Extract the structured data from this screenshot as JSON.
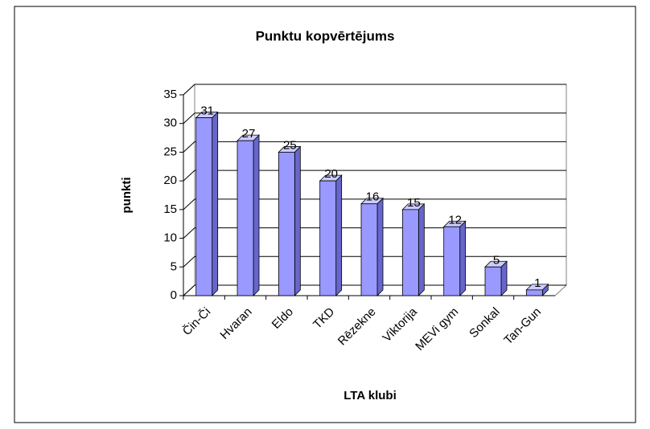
{
  "chart_data": {
    "type": "bar3d",
    "title": "Punktu kopvērtējums",
    "x_label": "LTA klubi",
    "y_label": "punkti",
    "categories": [
      "Čin-Či",
      "Hvaran",
      "Eldo",
      "TKD",
      "Rēzekne",
      "Viktorija",
      "MEVi gym",
      "Sonkal",
      "Tan-Gun"
    ],
    "values": [
      31,
      27,
      25,
      20,
      16,
      15,
      12,
      5,
      1
    ],
    "color": "#9999ff",
    "ylim": [
      0,
      35
    ],
    "yticks": [
      0,
      5,
      10,
      15,
      20,
      25,
      30,
      35
    ],
    "grid": true
  }
}
